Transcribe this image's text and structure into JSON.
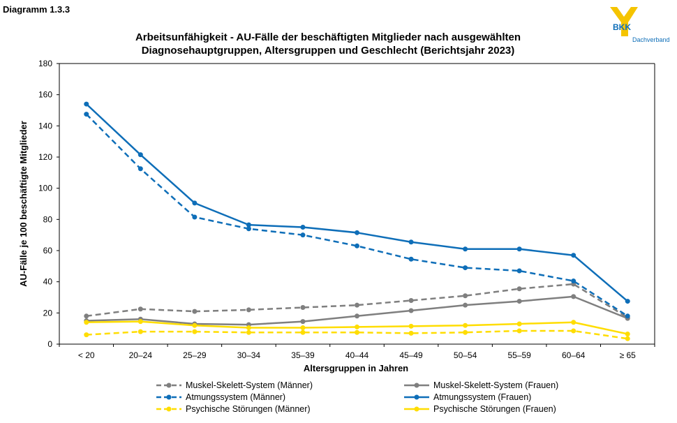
{
  "header": {
    "diagram_label": "Diagramm 1.3.3",
    "logo_text": "BKK",
    "logo_subtext": "Dachverband"
  },
  "chart_data": {
    "type": "line",
    "title_line1": "Arbeitsunfähigkeit - AU-Fälle der beschäftigten Mitglieder nach ausgewählten",
    "title_line2": "Diagnosehauptgruppen, Altersgruppen und Geschlecht (Berichtsjahr 2023)",
    "xlabel": "Altersgruppen in Jahren",
    "ylabel": "AU-Fälle je 100 beschäftigte Mitglieder",
    "ylim": [
      0,
      180
    ],
    "yticks": [
      0,
      20,
      40,
      60,
      80,
      100,
      120,
      140,
      160,
      180
    ],
    "grid": false,
    "legend_position": "bottom",
    "categories": [
      "< 20",
      "20–24",
      "25–29",
      "30–34",
      "35–39",
      "40–44",
      "45–49",
      "50–54",
      "55–59",
      "60–64",
      "≥ 65"
    ],
    "series": [
      {
        "name": "Muskel-Skelett-System (Männer)",
        "color": "#7f7f7f",
        "dashed": true,
        "values": [
          18.0,
          22.5,
          21.0,
          22.0,
          23.5,
          25.0,
          28.0,
          31.0,
          35.5,
          38.5,
          17.0
        ]
      },
      {
        "name": "Muskel-Skelett-System (Frauen)",
        "color": "#7f7f7f",
        "dashed": false,
        "values": [
          15.0,
          16.0,
          13.0,
          12.5,
          14.5,
          18.0,
          21.5,
          25.0,
          27.5,
          30.5,
          16.5
        ]
      },
      {
        "name": "Atmungssystem (Männer)",
        "color": "#0e6eb8",
        "dashed": true,
        "values": [
          147.5,
          112.5,
          81.5,
          74.0,
          70.0,
          63.0,
          54.5,
          49.0,
          47.0,
          40.5,
          18.0
        ]
      },
      {
        "name": "Atmungssystem (Frauen)",
        "color": "#0e6eb8",
        "dashed": false,
        "values": [
          154.0,
          121.5,
          90.5,
          76.5,
          75.0,
          71.5,
          65.5,
          61.0,
          61.0,
          57.0,
          27.5
        ]
      },
      {
        "name": "Psychische Störungen (Männer)",
        "color": "#ffdd00",
        "dashed": true,
        "values": [
          6.0,
          8.0,
          8.0,
          7.5,
          7.5,
          7.5,
          7.0,
          7.5,
          8.5,
          8.5,
          3.5
        ]
      },
      {
        "name": "Psychische Störungen (Frauen)",
        "color": "#ffdd00",
        "dashed": false,
        "values": [
          14.0,
          14.5,
          12.0,
          10.5,
          10.5,
          11.0,
          11.5,
          12.0,
          13.0,
          14.0,
          6.5
        ]
      }
    ]
  }
}
